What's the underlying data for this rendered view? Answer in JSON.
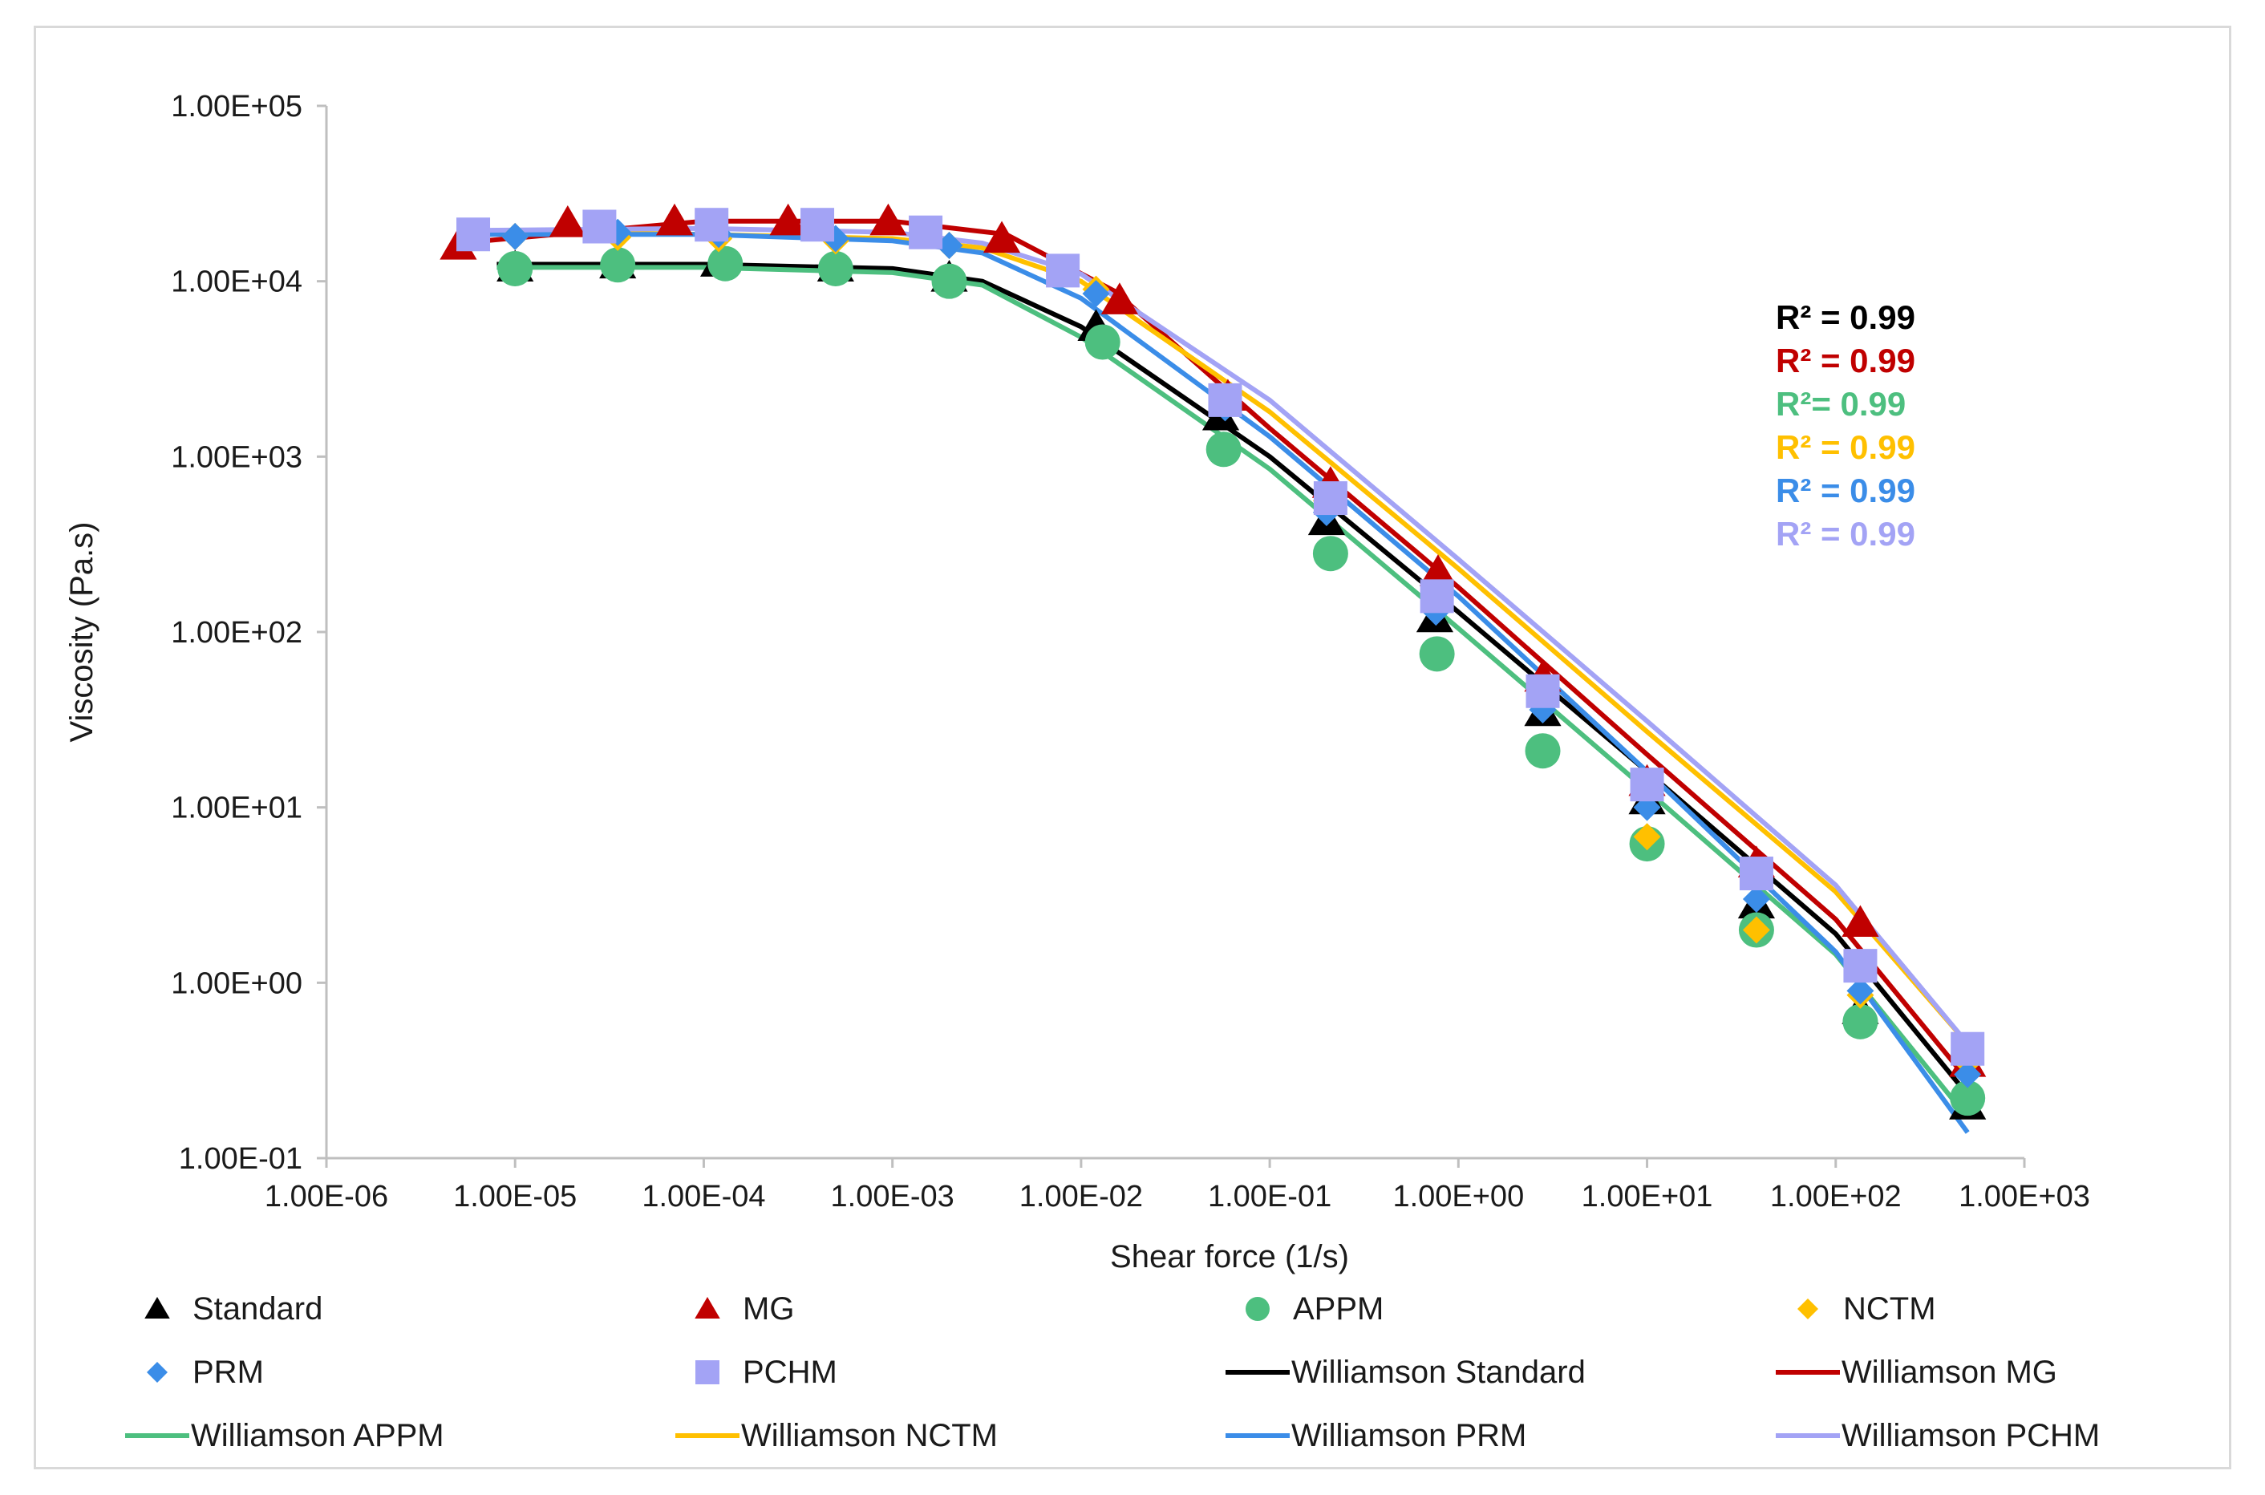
{
  "chart_data": {
    "type": "scatter",
    "x_scale": "log",
    "y_scale": "log",
    "xlabel": "Shear force (1/s)",
    "ylabel": "Viscosity (Pa.s)",
    "xlim": [
      1e-06,
      1000
    ],
    "ylim": [
      0.1,
      100000
    ],
    "x_tick_labels": [
      "1.00E-06",
      "1.00E-05",
      "1.00E-04",
      "1.00E-03",
      "1.00E-02",
      "1.00E-01",
      "1.00E+00",
      "1.00E+01",
      "1.00E+02",
      "1.00E+03"
    ],
    "y_tick_labels": [
      "1.00E-01",
      "1.00E+00",
      "1.00E+01",
      "1.00E+02",
      "1.00E+03",
      "1.00E+04",
      "1.00E+05"
    ],
    "grid": false,
    "legend_position": "bottom",
    "series": [
      {
        "name": "Standard",
        "marker": "triangle",
        "color": "#000000",
        "x": [
          1e-05,
          3.5e-05,
          0.00012,
          0.0005,
          0.002,
          0.012,
          0.055,
          0.2,
          0.75,
          2.8,
          10,
          38,
          135,
          500
        ],
        "y": [
          12000,
          12500,
          12800,
          12000,
          10500,
          5500,
          1700,
          430,
          120,
          35,
          11,
          2.8,
          0.7,
          0.2
        ]
      },
      {
        "name": "MG",
        "marker": "triangle",
        "color": "#c00000",
        "x": [
          5e-06,
          1.9e-05,
          7e-05,
          0.00028,
          0.00095,
          0.0038,
          0.016,
          0.06,
          0.21,
          0.78,
          2.8,
          10,
          38,
          135,
          500
        ],
        "y": [
          16000,
          21500,
          22000,
          22000,
          22000,
          17500,
          7800,
          2200,
          700,
          220,
          55,
          14,
          4.8,
          2.2,
          0.35
        ]
      },
      {
        "name": "APPM",
        "marker": "circle",
        "color": "#4dbf7f",
        "x": [
          1e-05,
          3.5e-05,
          0.00013,
          0.0005,
          0.002,
          0.013,
          0.057,
          0.21,
          0.77,
          2.8,
          10,
          38,
          135,
          500
        ],
        "y": [
          11800,
          12400,
          12600,
          11800,
          10000,
          4500,
          1100,
          280,
          75,
          21,
          6.2,
          2.0,
          0.6,
          0.22
        ]
      },
      {
        "name": "NCTM",
        "marker": "diamond",
        "color": "#ffc000",
        "x": [
          1e-05,
          3.5e-05,
          0.00012,
          0.0005,
          0.002,
          0.012,
          0.058,
          0.2,
          0.76,
          2.8,
          10,
          38,
          135,
          500
        ],
        "y": [
          18000,
          17800,
          17500,
          17000,
          16000,
          9000,
          2200,
          560,
          150,
          42,
          6.8,
          2.0,
          0.85,
          0.35
        ]
      },
      {
        "name": "PRM",
        "marker": "diamond",
        "color": "#3b8de8",
        "x": [
          1e-05,
          3.5e-05,
          0.00012,
          0.0005,
          0.002,
          0.012,
          0.058,
          0.2,
          0.76,
          2.8,
          10,
          38,
          135,
          500
        ],
        "y": [
          18000,
          19000,
          18500,
          17500,
          16000,
          8500,
          1900,
          480,
          130,
          36,
          10,
          3.0,
          0.9,
          0.3
        ]
      },
      {
        "name": "PCHM",
        "marker": "square",
        "color": "#a3a3f5",
        "x": [
          6e-06,
          2.8e-05,
          0.00011,
          0.0004,
          0.0015,
          0.008,
          0.058,
          0.21,
          0.77,
          2.8,
          10,
          38,
          135,
          500
        ],
        "y": [
          18500,
          20500,
          21000,
          21000,
          19000,
          11500,
          2100,
          580,
          160,
          46,
          13.5,
          4.2,
          1.25,
          0.42
        ]
      }
    ],
    "fit_lines": [
      {
        "name": "Williamson Standard",
        "color": "#000000",
        "x": [
          8e-06,
          0.0001,
          0.001,
          0.003,
          0.01,
          0.1,
          1,
          10,
          100,
          500
        ],
        "y": [
          12500,
          12500,
          11800,
          10000,
          5500,
          1000,
          130,
          16,
          1.9,
          0.23
        ]
      },
      {
        "name": "Williamson MG",
        "color": "#c00000",
        "x": [
          5e-06,
          0.0001,
          0.001,
          0.004,
          0.015,
          0.1,
          1,
          10,
          100,
          500
        ],
        "y": [
          16500,
          22000,
          22000,
          18500,
          8800,
          1450,
          180,
          20,
          2.3,
          0.28
        ]
      },
      {
        "name": "Williamson APPM",
        "color": "#4dbf7f",
        "x": [
          8e-06,
          0.0001,
          0.001,
          0.003,
          0.01,
          0.1,
          1,
          10,
          100,
          500
        ],
        "y": [
          12000,
          12000,
          11200,
          9500,
          4800,
          850,
          105,
          12.5,
          1.45,
          0.17
        ]
      },
      {
        "name": "Williamson NCTM",
        "color": "#ffc000",
        "x": [
          6e-06,
          0.0001,
          0.001,
          0.003,
          0.01,
          0.1,
          1,
          10,
          100,
          500
        ],
        "y": [
          19500,
          18500,
          17500,
          15500,
          10000,
          1800,
          230,
          27,
          3.3,
          0.45
        ]
      },
      {
        "name": "Williamson PRM",
        "color": "#3b8de8",
        "x": [
          6e-06,
          0.0001,
          0.001,
          0.003,
          0.01,
          0.1,
          1,
          10,
          100,
          500
        ],
        "y": [
          18500,
          18500,
          17000,
          14500,
          8000,
          1300,
          160,
          16,
          1.5,
          0.14
        ]
      },
      {
        "name": "Williamson PCHM",
        "color": "#a3a3f5",
        "x": [
          6e-06,
          0.0001,
          0.001,
          0.003,
          0.01,
          0.1,
          1,
          10,
          100,
          500
        ],
        "y": [
          19500,
          20000,
          19000,
          16500,
          11000,
          2100,
          260,
          31,
          3.6,
          0.45
        ]
      }
    ],
    "annotations": [
      {
        "text": "R² = 0.99",
        "color": "#000000"
      },
      {
        "text": "R² = 0.99",
        "color": "#c00000"
      },
      {
        "text": "R²= 0.99",
        "color": "#4dbf7f"
      },
      {
        "text": "R² = 0.99",
        "color": "#ffc000"
      },
      {
        "text": "R² = 0.99",
        "color": "#3b8de8"
      },
      {
        "text": "R² = 0.99",
        "color": "#a3a3f5"
      }
    ],
    "legend": [
      {
        "label": "Standard",
        "kind": "marker",
        "marker": "triangle",
        "color": "#000000"
      },
      {
        "label": "MG",
        "kind": "marker",
        "marker": "triangle",
        "color": "#c00000"
      },
      {
        "label": "APPM",
        "kind": "marker",
        "marker": "circle",
        "color": "#4dbf7f"
      },
      {
        "label": "NCTM",
        "kind": "marker",
        "marker": "diamond",
        "color": "#ffc000"
      },
      {
        "label": "PRM",
        "kind": "marker",
        "marker": "diamond",
        "color": "#3b8de8"
      },
      {
        "label": "PCHM",
        "kind": "marker",
        "marker": "square",
        "color": "#a3a3f5"
      },
      {
        "label": "Williamson Standard",
        "kind": "line",
        "color": "#000000"
      },
      {
        "label": "Williamson MG",
        "kind": "line",
        "color": "#c00000"
      },
      {
        "label": "Williamson APPM",
        "kind": "line",
        "color": "#4dbf7f"
      },
      {
        "label": "Williamson NCTM",
        "kind": "line",
        "color": "#ffc000"
      },
      {
        "label": "Williamson PRM",
        "kind": "line",
        "color": "#3b8de8"
      },
      {
        "label": "Williamson PCHM",
        "kind": "line",
        "color": "#a3a3f5"
      }
    ]
  }
}
